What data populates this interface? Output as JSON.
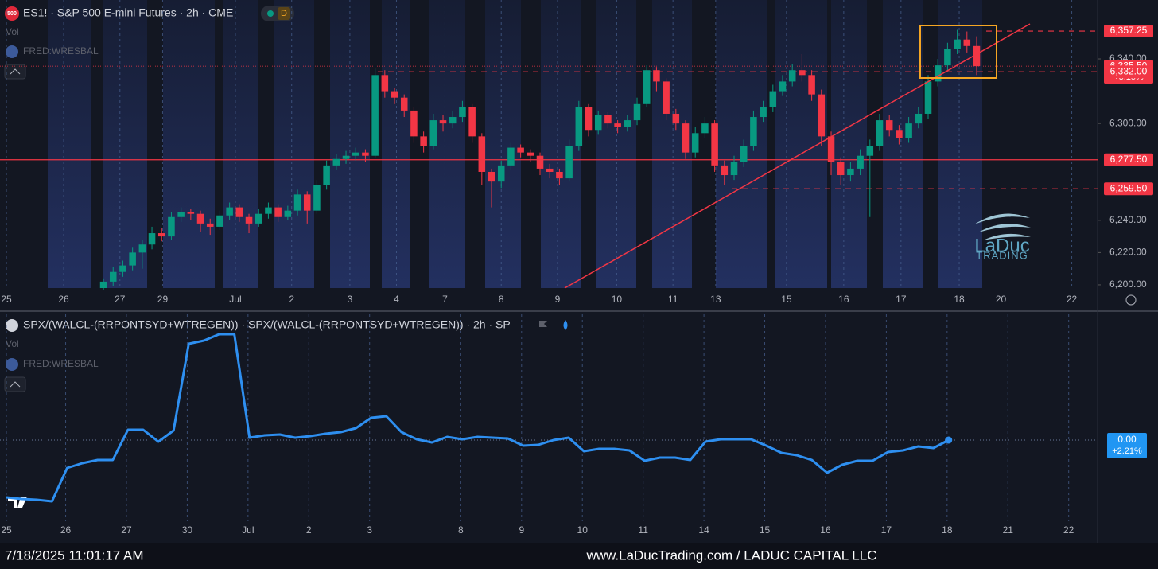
{
  "chart_data": [
    {
      "type": "candlestick",
      "title": "ES1! · S&P 500 E-mini Futures · 2h · CME",
      "symbol_badge": "500",
      "interval_badge": "D",
      "indicators": [
        "Vol",
        "FRED:WRESBAL"
      ],
      "watermark": {
        "name": "LaDuc",
        "sub": "TRADING"
      },
      "up_color": "#089981",
      "down_color": "#f23645",
      "xlim": [
        -10.66,
        102.46
      ],
      "ylim": [
        6198,
        6376.5
      ],
      "yticks": [
        {
          "value": 6200,
          "label": "6,200.00"
        },
        {
          "value": 6220,
          "label": "6,220.00"
        },
        {
          "value": 6240,
          "label": "6,240.00"
        },
        {
          "value": 6300,
          "label": "6,300.00"
        },
        {
          "value": 6340,
          "label": "6,340.00"
        }
      ],
      "xticks": [
        {
          "value": -10,
          "label": "25"
        },
        {
          "value": -4.1,
          "label": "26"
        },
        {
          "value": 1.7,
          "label": "27"
        },
        {
          "value": 6.1,
          "label": "29"
        },
        {
          "value": 13.6,
          "label": "Jul"
        },
        {
          "value": 19.4,
          "label": "2"
        },
        {
          "value": 25.4,
          "label": "3"
        },
        {
          "value": 30.2,
          "label": "4"
        },
        {
          "value": 35.2,
          "label": "7"
        },
        {
          "value": 41,
          "label": "8"
        },
        {
          "value": 46.8,
          "label": "9"
        },
        {
          "value": 52.9,
          "label": "10"
        },
        {
          "value": 58.7,
          "label": "11"
        },
        {
          "value": 63.1,
          "label": "13"
        },
        {
          "value": 70.4,
          "label": "15"
        },
        {
          "value": 76.3,
          "label": "16"
        },
        {
          "value": 82.2,
          "label": "17"
        },
        {
          "value": 88.2,
          "label": "18"
        },
        {
          "value": 92.5,
          "label": "20"
        },
        {
          "value": 99.8,
          "label": "22"
        }
      ],
      "levels": [
        {
          "value": 6357.25,
          "label": "6,357.25",
          "style": "dashed"
        },
        {
          "value": 6335.5,
          "label": "6,335.50",
          "change": "+3.15%",
          "style": "dotted"
        },
        {
          "value": 6332,
          "label": "6,332.00",
          "style": "dashed"
        },
        {
          "value": 6277.5,
          "label": "6,277.50",
          "style": "solid"
        },
        {
          "value": 6259.5,
          "label": "6,259.50",
          "style": "dashed"
        }
      ],
      "candles": [
        [
          6198,
          6204,
          6197,
          6202
        ],
        [
          6202,
          6211,
          6199,
          6208
        ],
        [
          6208,
          6215,
          6205,
          6212
        ],
        [
          6212,
          6223,
          6209,
          6220
        ],
        [
          6220,
          6228,
          6210,
          6225
        ],
        [
          6225,
          6236,
          6222,
          6232
        ],
        [
          6232,
          6235,
          6227,
          6230
        ],
        [
          6230,
          6245,
          6228,
          6242
        ],
        [
          6242,
          6248,
          6239,
          6245
        ],
        [
          6245,
          6247,
          6240,
          6244
        ],
        [
          6244,
          6246,
          6233,
          6238
        ],
        [
          6238,
          6241,
          6231,
          6236
        ],
        [
          6236,
          6246,
          6234,
          6243
        ],
        [
          6243,
          6251,
          6240,
          6248
        ],
        [
          6248,
          6250,
          6239,
          6242
        ],
        [
          6242,
          6244,
          6232,
          6238
        ],
        [
          6238,
          6247,
          6236,
          6244
        ],
        [
          6244,
          6251,
          6241,
          6248
        ],
        [
          6248,
          6250,
          6239,
          6242
        ],
        [
          6242,
          6249,
          6240,
          6246
        ],
        [
          6246,
          6259,
          6243,
          6256
        ],
        [
          6256,
          6258,
          6238,
          6246
        ],
        [
          6246,
          6265,
          6244,
          6262
        ],
        [
          6262,
          6277,
          6259,
          6274
        ],
        [
          6274,
          6281,
          6271,
          6278
        ],
        [
          6278,
          6283,
          6275,
          6280
        ],
        [
          6280,
          6285,
          6277,
          6282
        ],
        [
          6282,
          6284,
          6276,
          6280
        ],
        [
          6280,
          6334,
          6279,
          6330
        ],
        [
          6330,
          6333,
          6316,
          6320
        ],
        [
          6320,
          6322,
          6312,
          6316
        ],
        [
          6316,
          6318,
          6304,
          6308
        ],
        [
          6308,
          6310,
          6288,
          6292
        ],
        [
          6292,
          6295,
          6282,
          6286
        ],
        [
          6286,
          6306,
          6284,
          6302
        ],
        [
          6302,
          6305,
          6295,
          6300
        ],
        [
          6300,
          6308,
          6297,
          6304
        ],
        [
          6304,
          6314,
          6301,
          6310
        ],
        [
          6310,
          6312,
          6288,
          6292
        ],
        [
          6292,
          6294,
          6262,
          6270
        ],
        [
          6270,
          6272,
          6248,
          6264
        ],
        [
          6264,
          6277,
          6260,
          6274
        ],
        [
          6274,
          6288,
          6271,
          6285
        ],
        [
          6285,
          6287,
          6279,
          6282
        ],
        [
          6282,
          6284,
          6276,
          6280
        ],
        [
          6280,
          6282,
          6268,
          6272
        ],
        [
          6272,
          6275,
          6266,
          6270
        ],
        [
          6270,
          6272,
          6262,
          6266
        ],
        [
          6266,
          6290,
          6264,
          6286
        ],
        [
          6286,
          6314,
          6283,
          6310
        ],
        [
          6310,
          6312,
          6292,
          6296
        ],
        [
          6296,
          6308,
          6293,
          6305
        ],
        [
          6305,
          6307,
          6297,
          6300
        ],
        [
          6300,
          6302,
          6294,
          6298
        ],
        [
          6298,
          6305,
          6295,
          6302
        ],
        [
          6302,
          6316,
          6299,
          6312
        ],
        [
          6312,
          6336,
          6310,
          6333
        ],
        [
          6333,
          6335,
          6320,
          6326
        ],
        [
          6326,
          6328,
          6302,
          6306
        ],
        [
          6306,
          6309,
          6296,
          6300
        ],
        [
          6300,
          6302,
          6278,
          6282
        ],
        [
          6282,
          6298,
          6279,
          6294
        ],
        [
          6294,
          6304,
          6291,
          6300
        ],
        [
          6300,
          6302,
          6270,
          6274
        ],
        [
          6274,
          6277,
          6262,
          6268
        ],
        [
          6268,
          6280,
          6265,
          6276
        ],
        [
          6276,
          6290,
          6273,
          6286
        ],
        [
          6286,
          6308,
          6283,
          6304
        ],
        [
          6304,
          6314,
          6301,
          6310
        ],
        [
          6310,
          6324,
          6307,
          6320
        ],
        [
          6320,
          6330,
          6317,
          6326
        ],
        [
          6326,
          6337,
          6323,
          6333
        ],
        [
          6333,
          6343,
          6326,
          6330
        ],
        [
          6330,
          6333,
          6314,
          6318
        ],
        [
          6318,
          6321,
          6286,
          6292
        ],
        [
          6292,
          6295,
          6268,
          6276
        ],
        [
          6276,
          6279,
          6262,
          6268
        ],
        [
          6268,
          6276,
          6264,
          6272
        ],
        [
          6272,
          6284,
          6268,
          6280
        ],
        [
          6280,
          6290,
          6242,
          6286
        ],
        [
          6286,
          6306,
          6283,
          6302
        ],
        [
          6302,
          6305,
          6292,
          6296
        ],
        [
          6296,
          6299,
          6287,
          6291
        ],
        [
          6291,
          6304,
          6288,
          6300
        ],
        [
          6300,
          6310,
          6297,
          6306
        ],
        [
          6306,
          6330,
          6303,
          6326
        ],
        [
          6326,
          6340,
          6323,
          6336
        ],
        [
          6336,
          6350,
          6333,
          6346
        ],
        [
          6346,
          6358,
          6343,
          6352
        ],
        [
          6352,
          6357,
          6344,
          6348
        ],
        [
          6348,
          6354,
          6330,
          6335.5
        ]
      ]
    },
    {
      "type": "line",
      "title": "SPX/(WALCL-(RRPONTSYD+WTREGEN)) · SPX/(WALCL-(RRPONTSYD+WTREGEN)) · 2h · SP",
      "indicators": [
        "Vol",
        "FRED:WRESBAL"
      ],
      "color": "#2e8ff0",
      "xlim": [
        -0.42,
        71.8
      ],
      "ylim": [
        -0.102,
        0.158
      ],
      "last_label": {
        "value": 0,
        "label": "0.00",
        "change": "+2.21%"
      },
      "xticks": [
        {
          "value": 0,
          "label": "25"
        },
        {
          "value": 3.9,
          "label": "26"
        },
        {
          "value": 7.9,
          "label": "27"
        },
        {
          "value": 11.9,
          "label": "30"
        },
        {
          "value": 15.9,
          "label": "Jul"
        },
        {
          "value": 19.9,
          "label": "2"
        },
        {
          "value": 23.9,
          "label": "3"
        },
        {
          "value": 29.9,
          "label": "8"
        },
        {
          "value": 33.9,
          "label": "9"
        },
        {
          "value": 37.9,
          "label": "10"
        },
        {
          "value": 41.9,
          "label": "11"
        },
        {
          "value": 45.9,
          "label": "14"
        },
        {
          "value": 49.9,
          "label": "15"
        },
        {
          "value": 53.9,
          "label": "16"
        },
        {
          "value": 57.9,
          "label": "17"
        },
        {
          "value": 61.9,
          "label": "18"
        },
        {
          "value": 65.9,
          "label": "21"
        },
        {
          "value": 69.9,
          "label": "22"
        }
      ],
      "values": [
        -0.072,
        -0.074,
        -0.075,
        -0.077,
        -0.035,
        -0.029,
        -0.025,
        -0.025,
        0.013,
        0.013,
        -0.002,
        0.012,
        0.121,
        0.125,
        0.133,
        0.133,
        0.003,
        0.006,
        0.007,
        0.003,
        0.005,
        0.008,
        0.01,
        0.015,
        0.028,
        0.03,
        0.01,
        0.001,
        -0.003,
        0.004,
        0.001,
        0.004,
        0.003,
        0.002,
        -0.007,
        -0.006,
        0.0,
        0.003,
        -0.014,
        -0.011,
        -0.011,
        -0.013,
        -0.026,
        -0.022,
        -0.022,
        -0.025,
        -0.002,
        0.001,
        0.001,
        0.001,
        -0.007,
        -0.016,
        -0.019,
        -0.025,
        -0.041,
        -0.031,
        -0.026,
        -0.026,
        -0.015,
        -0.013,
        -0.008,
        -0.01,
        0.0
      ]
    }
  ],
  "footer": {
    "timestamp": "7/18/2025 11:01:17 AM",
    "credit": "www.LaDucTrading.com / LADUC CAPITAL LLC"
  }
}
